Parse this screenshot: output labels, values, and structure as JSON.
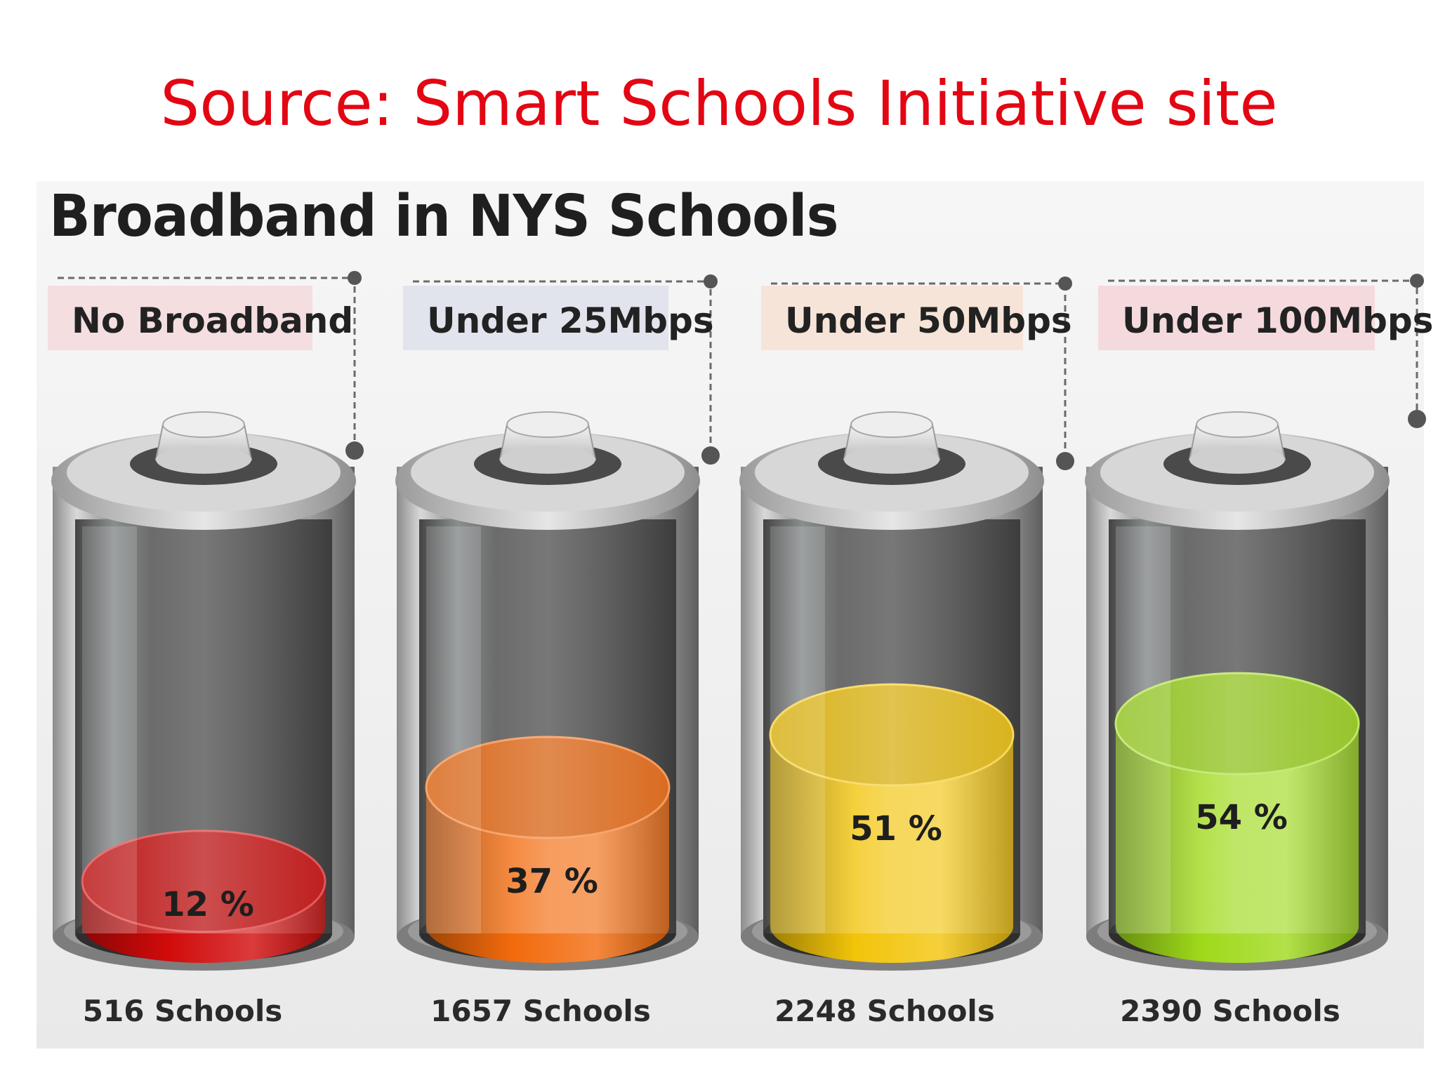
{
  "slide": {
    "source_title": "Source: Smart Schools Initiative site"
  },
  "chart_data": {
    "type": "bar",
    "title": "Broadband in NYS Schools",
    "categories": [
      "No Broadband",
      "Under 25Mbps",
      "Under 50Mbps",
      "Under 100Mbps"
    ],
    "values": [
      12,
      37,
      51,
      54
    ],
    "value_labels": [
      "12 %",
      "37 %",
      "51 %",
      "54 %"
    ],
    "counts": [
      "516 Schools",
      "1657 Schools",
      "2248 Schools",
      "2390 Schools"
    ],
    "unit": "%",
    "ylim": [
      0,
      100
    ],
    "colors": [
      "#d10a0a",
      "#f26a0c",
      "#f2c40a",
      "#9fd91a"
    ],
    "label_tints": [
      "#f3d9dc",
      "#dde0ea",
      "#f7e0d4",
      "#f5d5d8"
    ]
  }
}
